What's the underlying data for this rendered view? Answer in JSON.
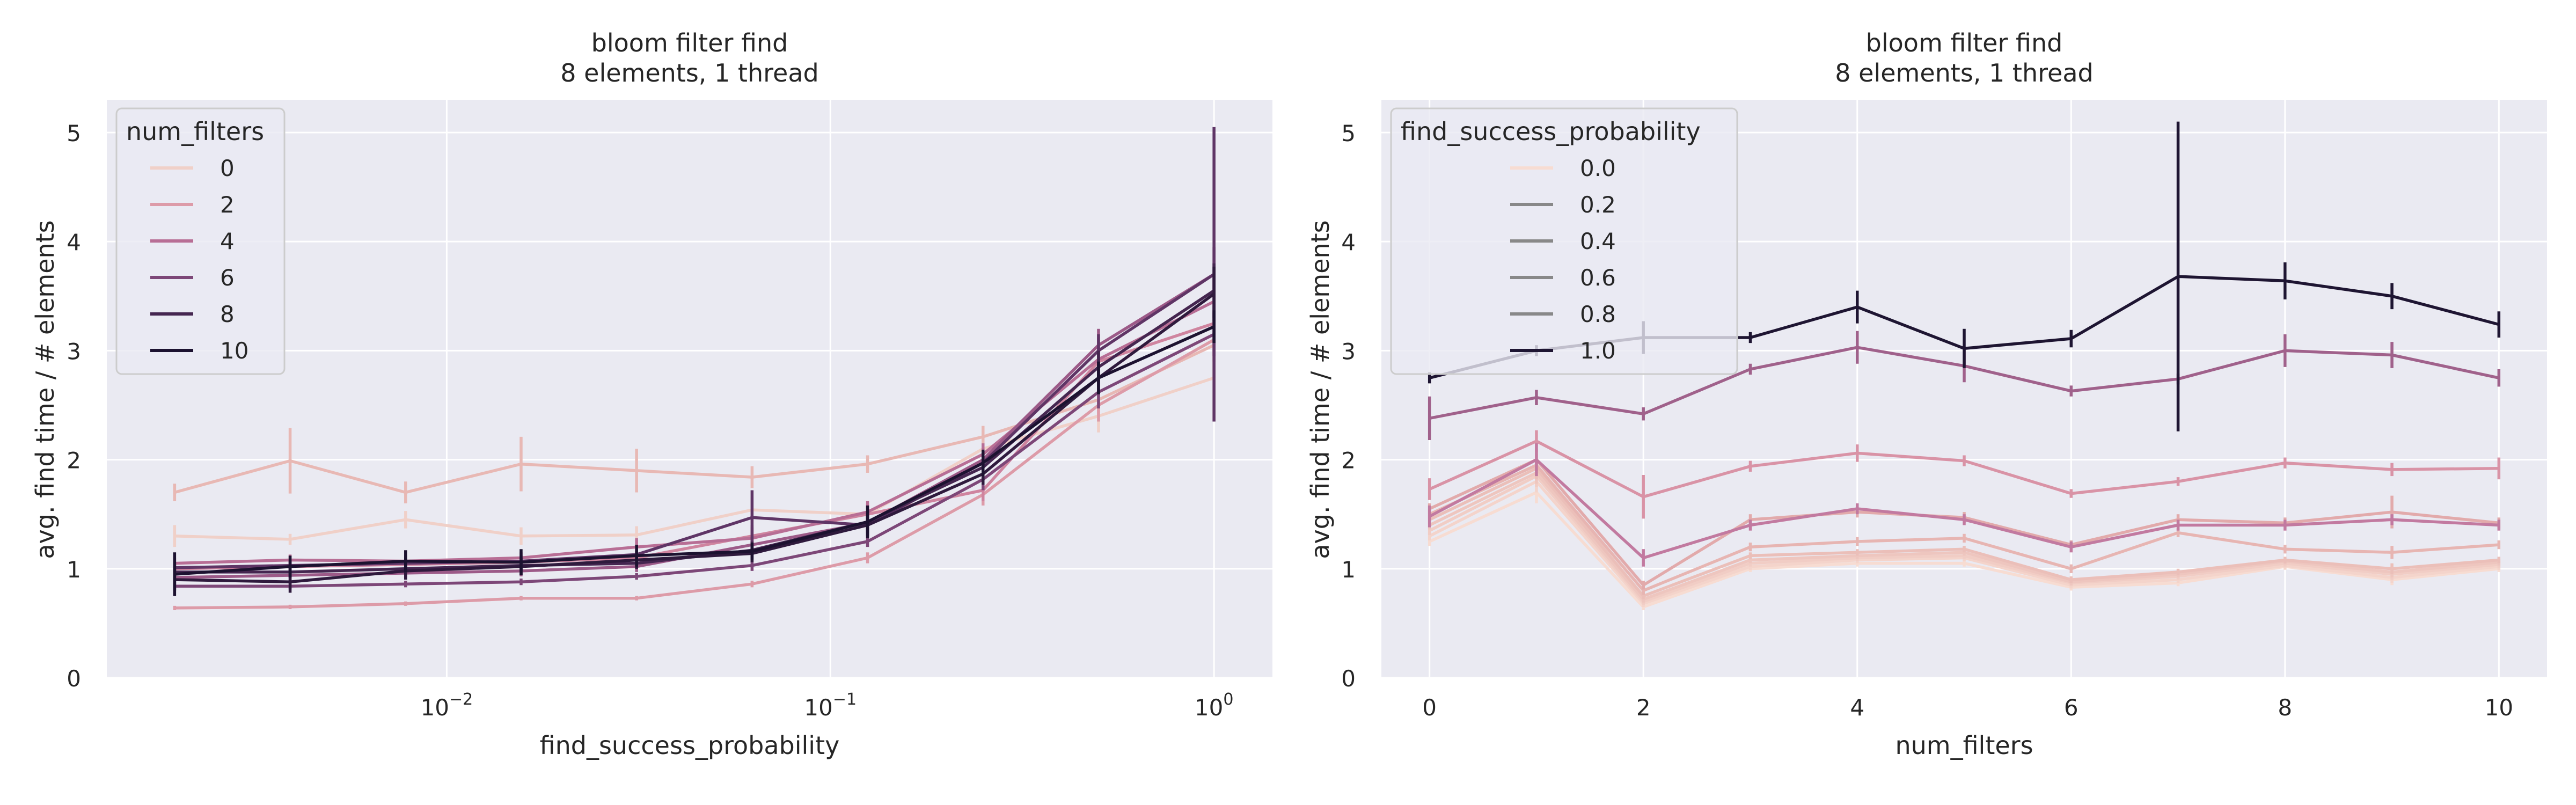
{
  "chart_data": [
    {
      "type": "line",
      "title": "bloom filter find",
      "subtitle": "8 elements, 1 thread",
      "xlabel": "find_success_probability",
      "ylabel": "avg. find time / # elements",
      "x_scale": "log",
      "xlim": [
        0.0013,
        1.42
      ],
      "ylim": [
        0,
        5.3
      ],
      "x_ticks": [
        0.01,
        0.1,
        1
      ],
      "x_tick_labels": [
        {
          "base": "10",
          "exp": "−2"
        },
        {
          "base": "10",
          "exp": "−1"
        },
        {
          "base": "10",
          "exp": "0"
        }
      ],
      "y_ticks": [
        0,
        1,
        2,
        3,
        4,
        5
      ],
      "y_tick_labels": [
        "0",
        "1",
        "2",
        "3",
        "4",
        "5"
      ],
      "grid": true,
      "legend": {
        "title": "num_filters",
        "placement": "top-left",
        "entries": [
          "0",
          "2",
          "4",
          "6",
          "8",
          "10"
        ]
      },
      "x": [
        0.001953,
        0.003906,
        0.007813,
        0.015625,
        0.03125,
        0.0625,
        0.125,
        0.25,
        0.5,
        1.0
      ],
      "series": [
        {
          "key": "0",
          "color": "#f0d0c8",
          "values": [
            1.3,
            1.27,
            1.45,
            1.3,
            1.31,
            1.54,
            1.5,
            2.1,
            2.4,
            2.75
          ],
          "err": [
            0.1,
            0.05,
            0.08,
            0.08,
            0.08,
            0.12,
            0.08,
            0.12,
            0.15,
            0.4
          ]
        },
        {
          "key": "1",
          "color": "#e8b8b4",
          "values": [
            1.7,
            1.99,
            1.7,
            1.96,
            1.9,
            1.84,
            1.96,
            2.21,
            2.55,
            3.05
          ],
          "err": [
            0.08,
            0.3,
            0.1,
            0.25,
            0.2,
            0.1,
            0.08,
            0.1,
            0.15,
            0.3
          ]
        },
        {
          "key": "2",
          "color": "#dd9ba8",
          "values": [
            0.64,
            0.65,
            0.68,
            0.73,
            0.73,
            0.86,
            1.1,
            1.68,
            2.5,
            3.1
          ],
          "err": [
            0.02,
            0.02,
            0.02,
            0.02,
            0.02,
            0.03,
            0.05,
            0.1,
            0.15,
            0.2
          ]
        },
        {
          "key": "3",
          "color": "#cf849f",
          "values": [
            1.0,
            1.02,
            1.04,
            1.06,
            1.1,
            1.3,
            1.5,
            1.72,
            2.9,
            3.25
          ],
          "err": [
            0.05,
            0.05,
            0.05,
            0.05,
            0.08,
            0.1,
            0.1,
            0.1,
            0.15,
            0.2
          ]
        },
        {
          "key": "4",
          "color": "#b86e95",
          "values": [
            1.05,
            1.08,
            1.07,
            1.1,
            1.2,
            1.28,
            1.52,
            2.05,
            2.92,
            3.45
          ],
          "err": [
            0.05,
            0.05,
            0.05,
            0.05,
            0.08,
            0.1,
            0.1,
            0.1,
            0.2,
            0.25
          ]
        },
        {
          "key": "5",
          "color": "#9c5a88",
          "values": [
            0.92,
            0.94,
            0.96,
            0.98,
            1.02,
            1.22,
            1.42,
            2.0,
            3.05,
            3.7
          ],
          "err": [
            0.05,
            0.05,
            0.05,
            0.05,
            0.05,
            0.08,
            0.1,
            0.1,
            0.15,
            0.25
          ]
        },
        {
          "key": "6",
          "color": "#7d4778",
          "values": [
            0.84,
            0.84,
            0.86,
            0.88,
            0.93,
            1.03,
            1.25,
            1.82,
            2.62,
            3.15
          ],
          "err": [
            0.03,
            0.03,
            0.03,
            0.03,
            0.03,
            0.05,
            0.05,
            0.1,
            0.15,
            0.2
          ]
        },
        {
          "key": "7",
          "color": "#5f3566",
          "values": [
            1.01,
            1.03,
            1.05,
            1.07,
            1.13,
            1.47,
            1.4,
            1.97,
            3.0,
            3.7
          ],
          "err": [
            0.05,
            0.05,
            0.05,
            0.05,
            0.05,
            0.25,
            0.1,
            0.1,
            0.15,
            1.35
          ]
        },
        {
          "key": "8",
          "color": "#452650",
          "values": [
            0.97,
            0.97,
            1.0,
            1.03,
            1.05,
            1.17,
            1.43,
            1.93,
            2.85,
            3.55
          ],
          "err": [
            0.05,
            0.05,
            0.05,
            0.05,
            0.05,
            0.08,
            0.1,
            0.1,
            0.15,
            0.25
          ]
        },
        {
          "key": "9",
          "color": "#2f1a3d",
          "values": [
            0.9,
            0.88,
            0.98,
            1.02,
            1.08,
            1.14,
            1.4,
            1.87,
            2.75,
            3.52
          ],
          "err": [
            0.1,
            0.1,
            0.08,
            0.08,
            0.08,
            0.08,
            0.1,
            0.1,
            0.15,
            0.25
          ]
        },
        {
          "key": "10",
          "color": "#1c1230",
          "values": [
            0.95,
            1.02,
            1.07,
            1.06,
            1.12,
            1.16,
            1.43,
            1.97,
            2.75,
            3.22
          ],
          "err": [
            0.2,
            0.1,
            0.1,
            0.12,
            0.1,
            0.08,
            0.15,
            0.12,
            0.15,
            0.15
          ]
        }
      ]
    },
    {
      "type": "line",
      "title": "bloom filter find",
      "subtitle": "8 elements, 1 thread",
      "xlabel": "num_filters",
      "ylabel": "avg. find time / # elements",
      "x_scale": "linear",
      "xlim": [
        -0.45,
        10.45
      ],
      "ylim": [
        0,
        5.3
      ],
      "x_ticks": [
        0,
        2,
        4,
        6,
        8,
        10
      ],
      "x_tick_labels": [
        "0",
        "2",
        "4",
        "6",
        "8",
        "10"
      ],
      "y_ticks": [
        0,
        1,
        2,
        3,
        4,
        5
      ],
      "y_tick_labels": [
        "0",
        "1",
        "2",
        "3",
        "4",
        "5"
      ],
      "grid": true,
      "legend": {
        "title": "find_success_probability",
        "placement": "top-left",
        "entries": [
          "0.0",
          "0.2",
          "0.4",
          "0.6",
          "0.8",
          "1.0"
        ]
      },
      "x": [
        0,
        1,
        2,
        3,
        4,
        5,
        6,
        7,
        8,
        9,
        10
      ],
      "series": [
        {
          "key": "0.0",
          "color": "#f7dcd2",
          "values": [
            1.25,
            1.7,
            0.65,
            1.0,
            1.05,
            1.05,
            0.83,
            0.87,
            1.02,
            0.9,
            1.0
          ],
          "err": [
            0.04,
            0.1,
            0.03,
            0.03,
            0.03,
            0.03,
            0.03,
            0.03,
            0.03,
            0.05,
            0.03
          ]
        },
        {
          "key": "0.002",
          "color": "#f4d4cb",
          "values": [
            1.3,
            1.8,
            0.68,
            1.02,
            1.08,
            1.1,
            0.85,
            0.9,
            1.03,
            0.92,
            1.02
          ],
          "err": [
            0.04,
            0.1,
            0.03,
            0.03,
            0.03,
            0.03,
            0.03,
            0.03,
            0.03,
            0.05,
            0.03
          ]
        },
        {
          "key": "0.004",
          "color": "#f1cdc5",
          "values": [
            1.35,
            1.85,
            0.7,
            1.05,
            1.1,
            1.12,
            0.87,
            0.93,
            1.05,
            0.95,
            1.04
          ],
          "err": [
            0.04,
            0.1,
            0.03,
            0.03,
            0.03,
            0.03,
            0.03,
            0.03,
            0.03,
            0.05,
            0.03
          ]
        },
        {
          "key": "0.008",
          "color": "#eec6bf",
          "values": [
            1.4,
            1.88,
            0.72,
            1.08,
            1.12,
            1.15,
            0.88,
            0.95,
            1.07,
            0.97,
            1.06
          ],
          "err": [
            0.04,
            0.1,
            0.03,
            0.03,
            0.03,
            0.03,
            0.03,
            0.03,
            0.03,
            0.05,
            0.03
          ]
        },
        {
          "key": "0.016",
          "color": "#ebbfb9",
          "values": [
            1.45,
            1.92,
            0.75,
            1.12,
            1.15,
            1.18,
            0.9,
            0.97,
            1.08,
            1.0,
            1.08
          ],
          "err": [
            0.04,
            0.1,
            0.03,
            0.03,
            0.03,
            0.03,
            0.03,
            0.03,
            0.03,
            0.05,
            0.03
          ]
        },
        {
          "key": "0.031",
          "color": "#e7b5b2",
          "values": [
            1.5,
            1.95,
            0.8,
            1.2,
            1.25,
            1.28,
            1.0,
            1.33,
            1.18,
            1.15,
            1.22
          ],
          "err": [
            0.05,
            0.1,
            0.04,
            0.04,
            0.04,
            0.04,
            0.04,
            0.04,
            0.04,
            0.06,
            0.04
          ]
        },
        {
          "key": "0.0625",
          "color": "#e2aaab",
          "values": [
            1.55,
            2.0,
            0.85,
            1.45,
            1.52,
            1.47,
            1.22,
            1.45,
            1.42,
            1.52,
            1.42
          ],
          "err": [
            0.05,
            0.1,
            0.04,
            0.05,
            0.05,
            0.05,
            0.04,
            0.05,
            0.05,
            0.15,
            0.05
          ]
        },
        {
          "key": "0.125",
          "color": "#d993a6",
          "values": [
            1.73,
            2.17,
            1.66,
            1.94,
            2.06,
            1.99,
            1.69,
            1.8,
            1.97,
            1.91,
            1.92
          ],
          "err": [
            0.1,
            0.1,
            0.2,
            0.05,
            0.08,
            0.05,
            0.04,
            0.04,
            0.05,
            0.06,
            0.1
          ]
        },
        {
          "key": "0.25",
          "color": "#c27aa0",
          "values": [
            1.48,
            2.0,
            1.1,
            1.4,
            1.55,
            1.45,
            1.2,
            1.4,
            1.4,
            1.45,
            1.4
          ],
          "err": [
            0.1,
            0.15,
            0.08,
            0.05,
            0.05,
            0.05,
            0.05,
            0.05,
            0.05,
            0.05,
            0.05
          ]
        },
        {
          "key": "0.5",
          "color": "#a0618b",
          "values": [
            2.38,
            2.57,
            2.42,
            2.83,
            3.03,
            2.86,
            2.63,
            2.74,
            3.0,
            2.96,
            2.75
          ],
          "err": [
            0.2,
            0.07,
            0.06,
            0.05,
            0.15,
            0.15,
            0.05,
            0.05,
            0.15,
            0.12,
            0.08
          ]
        },
        {
          "key": "1.0",
          "color": "#1e1532",
          "values": [
            2.75,
            3.0,
            3.12,
            3.12,
            3.4,
            3.02,
            3.11,
            3.68,
            3.64,
            3.5,
            3.24
          ],
          "err": [
            0.05,
            0.05,
            0.15,
            0.05,
            0.15,
            0.18,
            0.08,
            1.42,
            0.17,
            0.12,
            0.12
          ]
        }
      ]
    }
  ]
}
